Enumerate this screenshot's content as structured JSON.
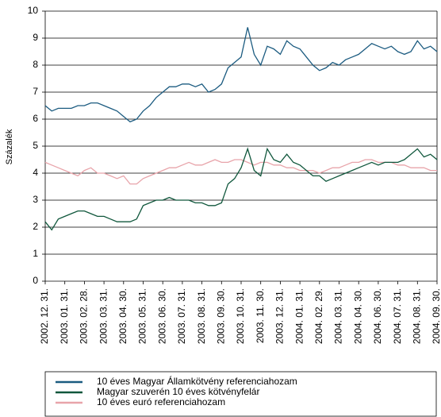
{
  "chart_data": {
    "type": "line",
    "ylabel": "Százalék",
    "categories": [
      "2002. 12. 31.",
      null,
      null,
      "2003. 01. 31.",
      null,
      null,
      "2003. 02. 28.",
      null,
      null,
      "2003. 03. 31.",
      null,
      null,
      "2003. 04. 30.",
      null,
      null,
      "2003. 05. 31.",
      null,
      null,
      "2003. 06. 30.",
      null,
      null,
      "2003. 07. 31.",
      null,
      null,
      "2003. 08. 31.",
      null,
      null,
      "2003. 09. 30.",
      null,
      null,
      "2003. 10. 31.",
      null,
      null,
      "2003. 11. 30.",
      null,
      null,
      "2003. 12. 31.",
      null,
      null,
      "2004. 01. 31.",
      null,
      null,
      "2004. 02. 29.",
      null,
      null,
      "2004. 03. 31.",
      null,
      null,
      "2004. 04. 30.",
      null,
      null,
      "2004. 06. 30.",
      null,
      null,
      "2004. 07. 31.",
      null,
      null,
      "2004. 08. 31.",
      null,
      null,
      "2004. 09. 30."
    ],
    "series": [
      {
        "name": "10 éves Magyar Államkötvény referenciahozam",
        "color": "#1b5b80",
        "values": [
          6.5,
          6.3,
          6.4,
          6.4,
          6.4,
          6.5,
          6.5,
          6.6,
          6.6,
          6.5,
          6.4,
          6.3,
          6.1,
          5.9,
          6.0,
          6.3,
          6.5,
          6.8,
          7.0,
          7.2,
          7.2,
          7.3,
          7.3,
          7.2,
          7.3,
          7.0,
          7.1,
          7.3,
          7.9,
          8.1,
          8.3,
          9.4,
          8.4,
          8.0,
          8.7,
          8.6,
          8.4,
          8.9,
          8.7,
          8.6,
          8.3,
          8.0,
          7.8,
          7.9,
          8.1,
          8.0,
          8.2,
          8.3,
          8.4,
          8.6,
          8.8,
          8.7,
          8.6,
          8.7,
          8.5,
          8.4,
          8.5,
          8.9,
          8.6,
          8.7,
          8.5
        ]
      },
      {
        "name": "Magyar szuverén 10 éves kötvényfelár",
        "color": "#10573c",
        "values": [
          2.2,
          1.9,
          2.3,
          2.4,
          2.5,
          2.6,
          2.6,
          2.5,
          2.4,
          2.4,
          2.3,
          2.2,
          2.2,
          2.2,
          2.3,
          2.8,
          2.9,
          3.0,
          3.0,
          3.1,
          3.0,
          3.0,
          3.0,
          2.9,
          2.9,
          2.8,
          2.8,
          2.9,
          3.6,
          3.8,
          4.2,
          4.9,
          4.1,
          3.9,
          4.9,
          4.5,
          4.4,
          4.7,
          4.4,
          4.3,
          4.1,
          3.9,
          3.9,
          3.7,
          3.8,
          3.9,
          4.0,
          4.1,
          4.2,
          4.3,
          4.4,
          4.3,
          4.4,
          4.4,
          4.4,
          4.5,
          4.7,
          4.9,
          4.6,
          4.7,
          4.5
        ]
      },
      {
        "name": "10 éves euró referenciahozam",
        "color": "#e8a4aa",
        "values": [
          4.4,
          4.3,
          4.2,
          4.1,
          4.0,
          3.9,
          4.1,
          4.2,
          4.0,
          4.0,
          3.9,
          3.8,
          3.9,
          3.6,
          3.6,
          3.8,
          3.9,
          4.0,
          4.1,
          4.2,
          4.2,
          4.3,
          4.4,
          4.3,
          4.3,
          4.4,
          4.5,
          4.4,
          4.4,
          4.5,
          4.5,
          4.4,
          4.3,
          4.4,
          4.4,
          4.3,
          4.3,
          4.2,
          4.2,
          4.1,
          4.1,
          4.1,
          4.0,
          4.1,
          4.2,
          4.2,
          4.3,
          4.4,
          4.4,
          4.5,
          4.5,
          4.4,
          4.4,
          4.4,
          4.3,
          4.3,
          4.2,
          4.2,
          4.2,
          4.1,
          4.1
        ]
      }
    ],
    "ylim": [
      0,
      10
    ],
    "yticks": [
      0,
      1,
      2,
      3,
      4,
      5,
      6,
      7,
      8,
      9,
      10
    ],
    "grid": true
  }
}
